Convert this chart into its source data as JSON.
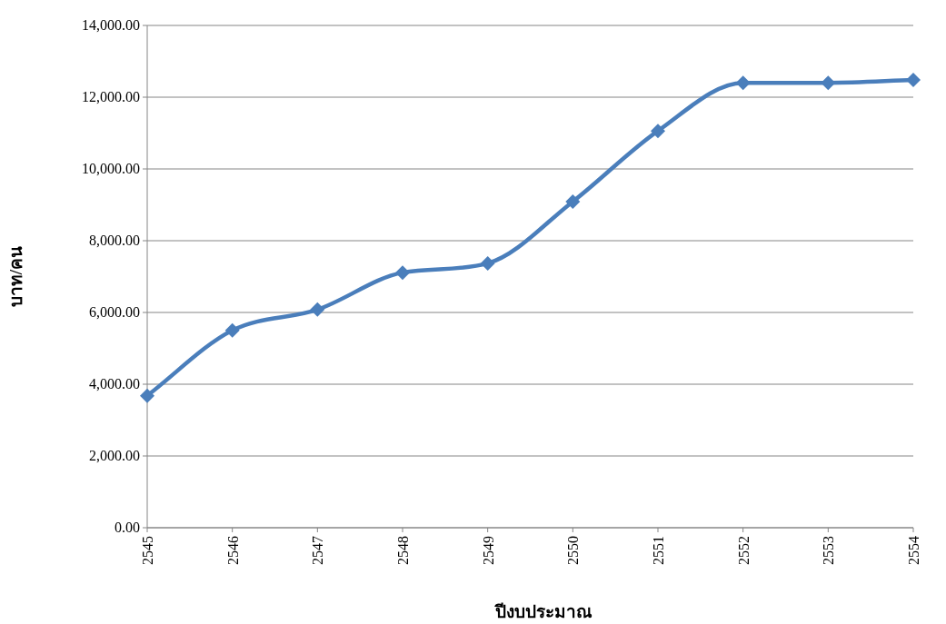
{
  "chart_data": {
    "type": "line",
    "categories": [
      "2545",
      "2546",
      "2547",
      "2548",
      "2549",
      "2550",
      "2551",
      "2552",
      "2553",
      "2554"
    ],
    "series": [
      {
        "color": "#4a7ebb",
        "values": [
          3680,
          5500,
          6080,
          7110,
          7370,
          9090,
          11060,
          12400,
          12400,
          12480
        ]
      }
    ],
    "xlabel": "ปีงบประมาณ",
    "ylabel": "บาท/คน",
    "ylim": [
      0,
      14000
    ],
    "yticks": [
      {
        "value": 0,
        "label": "0.00"
      },
      {
        "value": 2000,
        "label": "2,000.00"
      },
      {
        "value": 4000,
        "label": "4,000.00"
      },
      {
        "value": 6000,
        "label": "6,000.00"
      },
      {
        "value": 8000,
        "label": "8,000.00"
      },
      {
        "value": 10000,
        "label": "10,000.00"
      },
      {
        "value": 12000,
        "label": "12,000.00"
      },
      {
        "value": 14000,
        "label": "14,000.00"
      }
    ],
    "grid": "y",
    "marker": "diamond",
    "line_style": "solid"
  }
}
